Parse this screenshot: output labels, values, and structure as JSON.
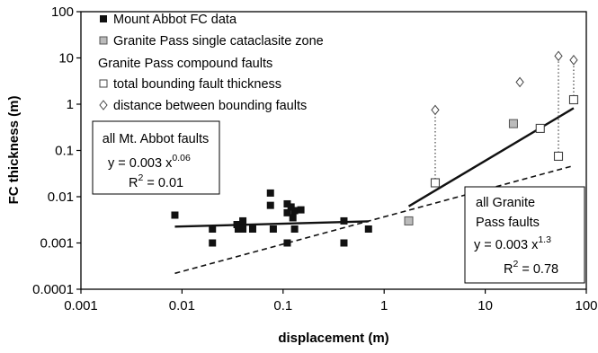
{
  "chart_data": {
    "type": "scatter",
    "xlabel": "displacement (m)",
    "ylabel": "FC thickness (m)",
    "xscale": "log",
    "yscale": "log",
    "xlim": [
      0.001,
      100
    ],
    "ylim": [
      0.0001,
      100
    ],
    "x_ticks": [
      "0.001",
      "0.01",
      "0.1",
      "1",
      "10",
      "100"
    ],
    "y_ticks": [
      "0.0001",
      "0.001",
      "0.01",
      "0.1",
      "1",
      "10",
      "100"
    ],
    "grid": false,
    "legend_position": "top-left",
    "legend": [
      {
        "key": "mount_abbot",
        "label": "Mount Abbot FC data",
        "marker": "filled-square"
      },
      {
        "key": "gp_single",
        "label": "Granite Pass single cataclasite zone",
        "marker": "grey-square"
      },
      {
        "key": "gp_header",
        "label": "Granite Pass compound faults",
        "marker": "none"
      },
      {
        "key": "gp_total",
        "label": "total bounding fault thickness",
        "marker": "open-square"
      },
      {
        "key": "gp_distance",
        "label": "distance between bounding faults",
        "marker": "open-diamond"
      }
    ],
    "series": [
      {
        "name": "Mount Abbot FC data",
        "marker": "filled-square",
        "color": "#111111",
        "points": [
          [
            0.0085,
            0.004
          ],
          [
            0.02,
            0.002
          ],
          [
            0.02,
            0.001
          ],
          [
            0.035,
            0.0025
          ],
          [
            0.036,
            0.002
          ],
          [
            0.04,
            0.003
          ],
          [
            0.04,
            0.002
          ],
          [
            0.05,
            0.002
          ],
          [
            0.075,
            0.012
          ],
          [
            0.075,
            0.0065
          ],
          [
            0.08,
            0.002
          ],
          [
            0.11,
            0.007
          ],
          [
            0.11,
            0.0045
          ],
          [
            0.11,
            0.001
          ],
          [
            0.12,
            0.006
          ],
          [
            0.125,
            0.0035
          ],
          [
            0.13,
            0.002
          ],
          [
            0.13,
            0.005
          ],
          [
            0.15,
            0.0052
          ],
          [
            0.4,
            0.003
          ],
          [
            0.4,
            0.001
          ],
          [
            0.7,
            0.002
          ]
        ]
      },
      {
        "name": "Granite Pass single cataclasite zone",
        "marker": "grey-square",
        "color": "#bbbbbb",
        "points": [
          [
            1.75,
            0.003
          ],
          [
            19,
            0.38
          ]
        ]
      },
      {
        "name": "total bounding fault thickness",
        "marker": "open-square",
        "color": "#ffffff",
        "points": [
          [
            3.2,
            0.02
          ],
          [
            35,
            0.3
          ],
          [
            53,
            0.075
          ],
          [
            75,
            1.25
          ]
        ]
      },
      {
        "name": "distance between bounding faults",
        "marker": "open-diamond",
        "color": "#ffffff",
        "points": [
          [
            3.2,
            0.75
          ],
          [
            22,
            3
          ],
          [
            53,
            11
          ],
          [
            75,
            9
          ]
        ]
      }
    ],
    "connectors": [
      {
        "x": 3.2,
        "y0": 0.02,
        "y1": 0.75
      },
      {
        "x": 53,
        "y0": 0.075,
        "y1": 11
      },
      {
        "x": 75,
        "y0": 1.25,
        "y1": 9
      }
    ],
    "fit_lines": [
      {
        "name": "all Mt. Abbot faults",
        "style": "solid",
        "a": 0.003,
        "b": 0.06,
        "x_range": [
          0.0085,
          0.7
        ]
      },
      {
        "name": "all Granite Pass faults",
        "style": "solid",
        "a": 0.003,
        "b": 1.3,
        "x_range": [
          1.75,
          75
        ]
      },
      {
        "name": "combined trend",
        "style": "dashed",
        "a": 0.00367,
        "b": 0.59,
        "x_range": [
          0.0085,
          75
        ]
      }
    ],
    "annotations": {
      "mt_abbot": {
        "title": "all Mt. Abbot faults",
        "eq_prefix": "y = 0.003 x",
        "eq_exp": "0.06",
        "r2_prefix": "R",
        "r2_sup": "2",
        "r2_value": " = 0.01"
      },
      "granite_pass": {
        "title_line1": "all Granite",
        "title_line2": "Pass faults",
        "eq_prefix": "y = 0.003 x",
        "eq_exp": "1.3",
        "r2_prefix": "R",
        "r2_sup": "2",
        "r2_value": " = 0.78"
      }
    }
  }
}
